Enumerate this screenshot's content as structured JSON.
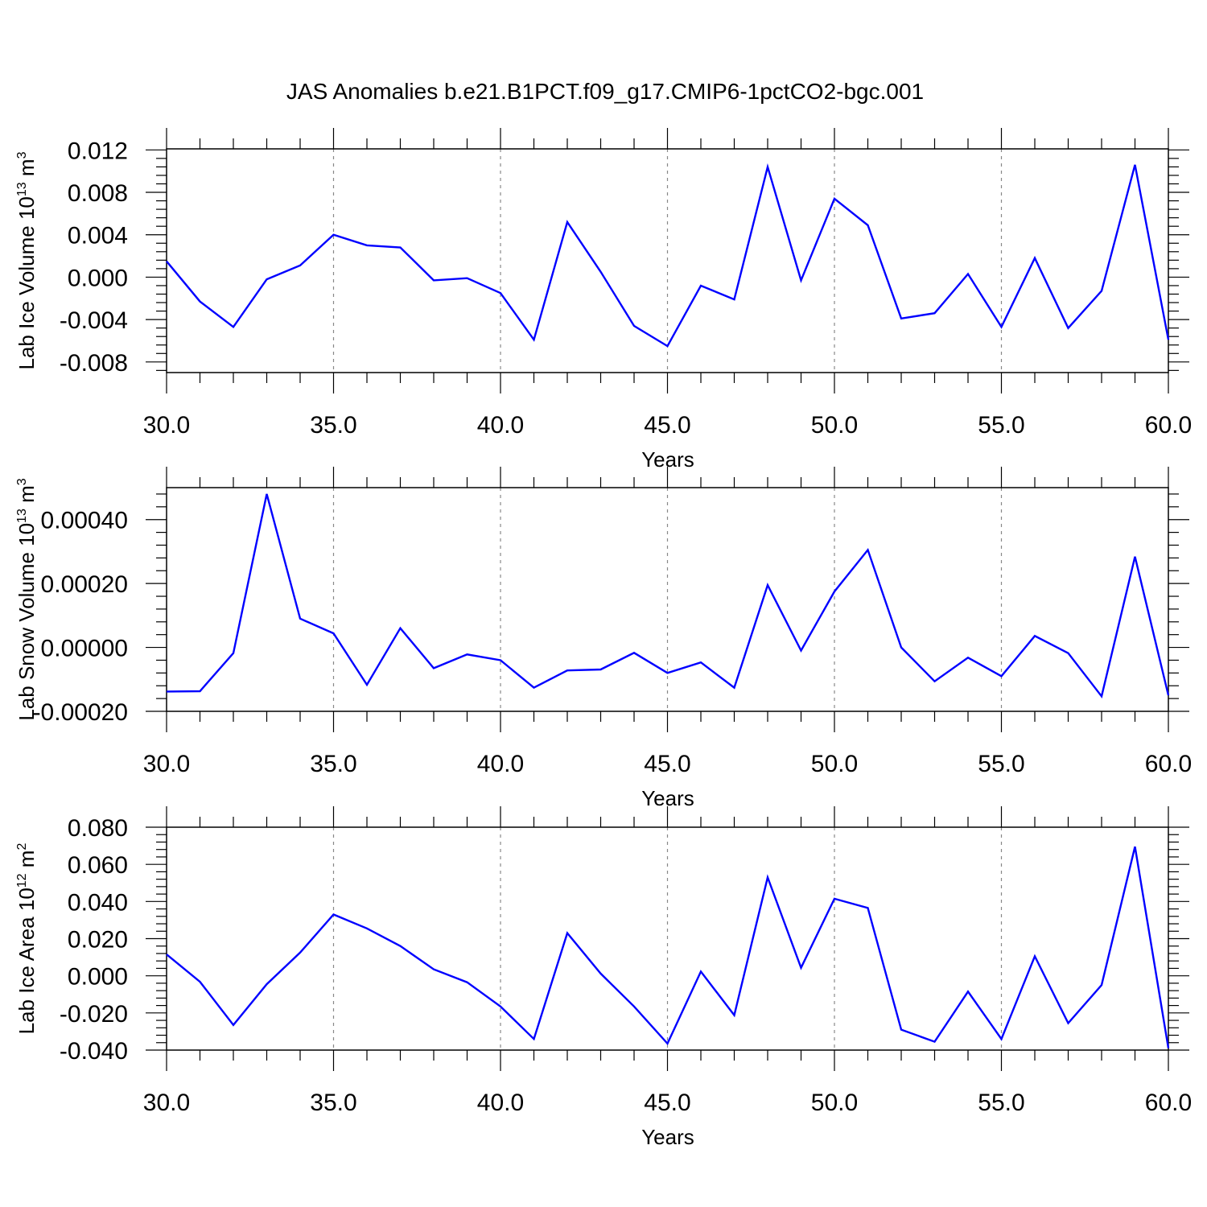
{
  "title": "JAS Anomalies b.e21.B1PCT.f09_g17.CMIP6-1pctCO2-bgc.001",
  "colors": {
    "line": "#0000ff",
    "axes": "#000000",
    "grid": "#888888"
  },
  "chart_data": [
    {
      "type": "line",
      "xlabel": "Years",
      "ylabel": {
        "base": "Lab Ice Volume 10",
        "sup1": "13",
        "mid": " m",
        "sup2": "3"
      },
      "xlim": [
        30,
        60
      ],
      "ylim": [
        -0.009,
        0.0121
      ],
      "xticks": [
        30,
        35,
        40,
        45,
        50,
        55,
        60
      ],
      "xtick_labels": [
        "30.0",
        "35.0",
        "40.0",
        "45.0",
        "50.0",
        "55.0",
        "60.0"
      ],
      "yticks": [
        -0.008,
        -0.004,
        0.0,
        0.004,
        0.008,
        0.012
      ],
      "ytick_labels": [
        "-0.008",
        "-0.004",
        "0.000",
        "0.004",
        "0.008",
        "0.012"
      ],
      "grid": "x-dashed",
      "series": [
        {
          "x": [
            30,
            31,
            32,
            33,
            34,
            35,
            36,
            37,
            38,
            39,
            40,
            41,
            42,
            43,
            44,
            45,
            46,
            47,
            48,
            49,
            50,
            51,
            52,
            53,
            54,
            55,
            56,
            57,
            58,
            59,
            60
          ],
          "values": [
            0.0015,
            -0.0023,
            -0.0047,
            -0.0002,
            0.0011,
            0.004,
            0.003,
            0.0028,
            -0.0003,
            -0.0001,
            -0.0015,
            -0.0059,
            0.0052,
            0.0005,
            -0.0046,
            -0.0065,
            -0.0008,
            -0.0021,
            0.0104,
            -0.0003,
            0.0074,
            0.0049,
            -0.0039,
            -0.0034,
            0.0003,
            -0.0047,
            0.0018,
            -0.0048,
            -0.0013,
            0.0106,
            -0.0059
          ]
        }
      ]
    },
    {
      "type": "line",
      "xlabel": "Years",
      "ylabel": {
        "base": "Lab Snow Volume 10",
        "sup1": "13",
        "mid": " m",
        "sup2": "3"
      },
      "xlim": [
        30,
        60
      ],
      "ylim": [
        -0.0002,
        0.0005
      ],
      "xticks": [
        30,
        35,
        40,
        45,
        50,
        55,
        60
      ],
      "xtick_labels": [
        "30.0",
        "35.0",
        "40.0",
        "45.0",
        "50.0",
        "55.0",
        "60.0"
      ],
      "yticks": [
        -0.0002,
        0.0,
        0.0002,
        0.0004
      ],
      "ytick_labels": [
        "-0.00020",
        "0.00000",
        "0.00020",
        "0.00040"
      ],
      "grid": "x-dashed",
      "series": [
        {
          "x": [
            30,
            31,
            32,
            33,
            34,
            35,
            36,
            37,
            38,
            39,
            40,
            41,
            42,
            43,
            44,
            45,
            46,
            47,
            48,
            49,
            50,
            51,
            52,
            53,
            54,
            55,
            56,
            57,
            58,
            59,
            60
          ],
          "values": [
            -0.000138,
            -0.000137,
            -1.8e-05,
            0.00048,
            9e-05,
            4.4e-05,
            -0.000117,
            6e-05,
            -6.5e-05,
            -2.2e-05,
            -4e-05,
            -0.000126,
            -7.2e-05,
            -6.9e-05,
            -1.7e-05,
            -8e-05,
            -4.7e-05,
            -0.000126,
            0.000195,
            -1e-05,
            0.000175,
            0.000305,
            0.0,
            -0.000106,
            -3.2e-05,
            -9e-05,
            3.6e-05,
            -1.8e-05,
            -0.000153,
            0.000284,
            -0.00015
          ]
        }
      ]
    },
    {
      "type": "line",
      "xlabel": "Years",
      "ylabel": {
        "base": "Lab Ice Area 10",
        "sup1": "12",
        "mid": " m",
        "sup2": "2"
      },
      "xlim": [
        30,
        60
      ],
      "ylim": [
        -0.04,
        0.08
      ],
      "xticks": [
        30,
        35,
        40,
        45,
        50,
        55,
        60
      ],
      "xtick_labels": [
        "30.0",
        "35.0",
        "40.0",
        "45.0",
        "50.0",
        "55.0",
        "60.0"
      ],
      "yticks": [
        -0.04,
        -0.02,
        0.0,
        0.02,
        0.04,
        0.06,
        0.08
      ],
      "ytick_labels": [
        "-0.040",
        "-0.020",
        "0.000",
        "0.020",
        "0.040",
        "0.060",
        "0.080"
      ],
      "grid": "x-dashed",
      "series": [
        {
          "x": [
            30,
            31,
            32,
            33,
            34,
            35,
            36,
            37,
            38,
            39,
            40,
            41,
            42,
            43,
            44,
            45,
            46,
            47,
            48,
            49,
            50,
            51,
            52,
            53,
            54,
            55,
            56,
            57,
            58,
            59,
            60
          ],
          "values": [
            0.0115,
            -0.0032,
            -0.0265,
            -0.0045,
            0.0125,
            0.033,
            0.0255,
            0.016,
            0.0035,
            -0.0035,
            -0.0165,
            -0.034,
            0.023,
            0.0012,
            -0.0165,
            -0.0365,
            0.0023,
            -0.0212,
            0.053,
            0.0043,
            0.0415,
            0.0365,
            -0.029,
            -0.0355,
            -0.0085,
            -0.034,
            0.0105,
            -0.0255,
            -0.005,
            0.0695,
            -0.039
          ]
        }
      ]
    }
  ]
}
